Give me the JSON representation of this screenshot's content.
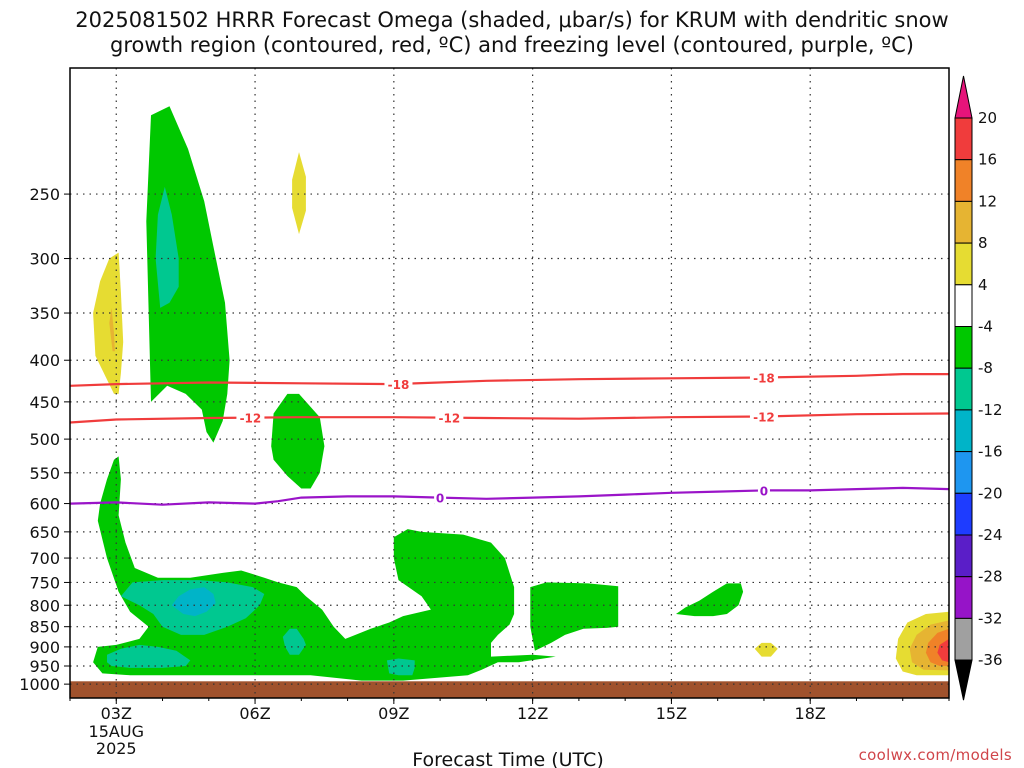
{
  "chart_data": {
    "type": "heatmap",
    "title_line1": "2025081502 HRRR Forecast Omega (shaded, μbar/s) for KRUM with dendritic snow",
    "title_line2": "growth region (contoured, red, ºC) and freezing level (contoured, purple, ºC)",
    "xlabel": "Forecast Time (UTC)",
    "ylabel": "",
    "xlim": [
      2.0,
      21.0
    ],
    "ylim": [
      1040,
      175
    ],
    "x_ticks": [
      {
        "value": 3,
        "label": "03Z"
      },
      {
        "value": 6,
        "label": "06Z"
      },
      {
        "value": 9,
        "label": "09Z"
      },
      {
        "value": 12,
        "label": "12Z"
      },
      {
        "value": 15,
        "label": "15Z"
      },
      {
        "value": 18,
        "label": "18Z"
      }
    ],
    "date_label": [
      "15AUG",
      "2025"
    ],
    "y_ticks": [
      250,
      300,
      350,
      400,
      450,
      500,
      550,
      600,
      650,
      700,
      750,
      800,
      850,
      900,
      950,
      1000
    ],
    "grid": true,
    "omega_regions": [
      {
        "level": -8,
        "color": "#00c800",
        "polygon": [
          [
            3.75,
            450
          ],
          [
            3.65,
            270
          ],
          [
            3.75,
            200
          ],
          [
            4.15,
            195
          ],
          [
            4.55,
            220
          ],
          [
            4.9,
            255
          ],
          [
            5.1,
            290
          ],
          [
            5.35,
            340
          ],
          [
            5.45,
            400
          ],
          [
            5.4,
            440
          ],
          [
            5.3,
            475
          ],
          [
            5.1,
            505
          ],
          [
            4.95,
            490
          ],
          [
            4.85,
            460
          ],
          [
            4.5,
            440
          ],
          [
            4.1,
            430
          ]
        ]
      },
      {
        "level": -12,
        "color": "#00c890",
        "polygon": [
          [
            3.95,
            345
          ],
          [
            3.85,
            300
          ],
          [
            3.9,
            265
          ],
          [
            4.05,
            245
          ],
          [
            4.2,
            265
          ],
          [
            4.35,
            300
          ],
          [
            4.35,
            325
          ],
          [
            4.15,
            340
          ]
        ]
      },
      {
        "level": 4,
        "color": "#e6dc32",
        "polygon": [
          [
            6.95,
            280
          ],
          [
            6.8,
            260
          ],
          [
            6.8,
            240
          ],
          [
            6.95,
            222
          ],
          [
            7.1,
            238
          ],
          [
            7.1,
            262
          ]
        ]
      },
      {
        "level": 4,
        "color": "#e6dc32",
        "polygon": [
          [
            2.95,
            440
          ],
          [
            2.55,
            395
          ],
          [
            2.5,
            350
          ],
          [
            2.65,
            320
          ],
          [
            2.85,
            300
          ],
          [
            3.05,
            295
          ],
          [
            3.1,
            330
          ],
          [
            3.15,
            380
          ],
          [
            3.1,
            415
          ],
          [
            3.05,
            440
          ]
        ]
      },
      {
        "level": 8,
        "color": "#e6b432",
        "polygon": [
          [
            2.92,
            390
          ],
          [
            2.85,
            360
          ],
          [
            2.9,
            345
          ],
          [
            2.95,
            370
          ],
          [
            2.97,
            390
          ]
        ]
      },
      {
        "level": -8,
        "color": "#00c800",
        "polygon": [
          [
            6.35,
            510
          ],
          [
            6.4,
            465
          ],
          [
            6.7,
            440
          ],
          [
            6.95,
            440
          ],
          [
            7.4,
            470
          ],
          [
            7.5,
            510
          ],
          [
            7.4,
            550
          ],
          [
            7.2,
            575
          ],
          [
            7.0,
            575
          ],
          [
            6.7,
            555
          ],
          [
            6.4,
            530
          ]
        ]
      },
      {
        "level": -8,
        "color": "#00c800",
        "polygon": [
          [
            2.5,
            940
          ],
          [
            2.6,
            900
          ],
          [
            3.0,
            895
          ],
          [
            3.5,
            880
          ],
          [
            3.7,
            850
          ],
          [
            3.3,
            815
          ],
          [
            3.05,
            770
          ],
          [
            2.8,
            700
          ],
          [
            2.6,
            630
          ],
          [
            2.65,
            600
          ],
          [
            2.8,
            560
          ],
          [
            2.95,
            530
          ],
          [
            3.05,
            525
          ],
          [
            3.1,
            560
          ],
          [
            3.05,
            620
          ],
          [
            3.2,
            670
          ],
          [
            3.4,
            720
          ],
          [
            3.9,
            740
          ],
          [
            4.6,
            740
          ],
          [
            5.3,
            730
          ],
          [
            5.7,
            725
          ],
          [
            6.2,
            740
          ],
          [
            6.5,
            750
          ],
          [
            6.9,
            760
          ],
          [
            7.1,
            780
          ],
          [
            7.45,
            810
          ],
          [
            7.7,
            850
          ],
          [
            7.95,
            880
          ],
          [
            8.5,
            855
          ],
          [
            8.9,
            840
          ],
          [
            9.2,
            825
          ],
          [
            9.8,
            810
          ],
          [
            9.6,
            780
          ],
          [
            9.1,
            745
          ],
          [
            9.0,
            700
          ],
          [
            9.0,
            660
          ],
          [
            9.3,
            645
          ],
          [
            9.6,
            650
          ],
          [
            10.5,
            655
          ],
          [
            11.1,
            670
          ],
          [
            11.4,
            700
          ],
          [
            11.6,
            760
          ],
          [
            11.6,
            820
          ],
          [
            11.5,
            845
          ],
          [
            11.25,
            870
          ],
          [
            11.1,
            890
          ],
          [
            11.1,
            925
          ],
          [
            12.0,
            920
          ],
          [
            12.5,
            925
          ],
          [
            11.7,
            940
          ],
          [
            11.25,
            940
          ],
          [
            10.9,
            960
          ],
          [
            10.6,
            975
          ],
          [
            9.2,
            990
          ],
          [
            8.3,
            990
          ],
          [
            7.2,
            975
          ],
          [
            6.0,
            975
          ],
          [
            5.0,
            975
          ],
          [
            4.2,
            975
          ],
          [
            3.3,
            975
          ],
          [
            2.7,
            970
          ]
        ]
      },
      {
        "level": -12,
        "color": "#00c890",
        "polygon": [
          [
            2.8,
            940
          ],
          [
            2.8,
            920
          ],
          [
            3.1,
            905
          ],
          [
            3.5,
            895
          ],
          [
            3.9,
            900
          ],
          [
            4.3,
            910
          ],
          [
            4.6,
            935
          ],
          [
            4.5,
            950
          ],
          [
            4.0,
            955
          ],
          [
            3.3,
            955
          ],
          [
            2.9,
            950
          ]
        ]
      },
      {
        "level": -12,
        "color": "#00c890",
        "polygon": [
          [
            3.1,
            780
          ],
          [
            3.35,
            750
          ],
          [
            4.0,
            745
          ],
          [
            4.8,
            745
          ],
          [
            5.4,
            750
          ],
          [
            5.95,
            760
          ],
          [
            6.2,
            775
          ],
          [
            6.1,
            800
          ],
          [
            5.8,
            830
          ],
          [
            5.4,
            850
          ],
          [
            4.9,
            870
          ],
          [
            4.4,
            870
          ],
          [
            4.0,
            850
          ],
          [
            3.8,
            820
          ],
          [
            3.5,
            800
          ]
        ]
      },
      {
        "level": -16,
        "color": "#00b4c8",
        "polygon": [
          [
            4.2,
            800
          ],
          [
            4.35,
            780
          ],
          [
            4.6,
            765
          ],
          [
            4.9,
            760
          ],
          [
            5.1,
            775
          ],
          [
            5.15,
            795
          ],
          [
            4.95,
            815
          ],
          [
            4.7,
            825
          ],
          [
            4.45,
            820
          ]
        ]
      },
      {
        "level": -12,
        "color": "#00c890",
        "polygon": [
          [
            6.6,
            875
          ],
          [
            6.75,
            855
          ],
          [
            6.9,
            855
          ],
          [
            7.05,
            880
          ],
          [
            7.1,
            895
          ],
          [
            6.95,
            920
          ],
          [
            6.75,
            920
          ],
          [
            6.65,
            900
          ]
        ]
      },
      {
        "level": -12,
        "color": "#00c890",
        "polygon": [
          [
            8.9,
            970
          ],
          [
            8.85,
            935
          ],
          [
            9.1,
            930
          ],
          [
            9.45,
            935
          ],
          [
            9.45,
            955
          ],
          [
            9.4,
            975
          ],
          [
            9.1,
            975
          ]
        ]
      },
      {
        "level": -8,
        "color": "#00c800",
        "polygon": [
          [
            11.95,
            760
          ],
          [
            12.3,
            750
          ],
          [
            13.2,
            752
          ],
          [
            13.85,
            758
          ],
          [
            13.85,
            850
          ],
          [
            13.6,
            853
          ],
          [
            13.1,
            855
          ],
          [
            12.7,
            870
          ],
          [
            12.4,
            890
          ],
          [
            12.05,
            910
          ],
          [
            11.95,
            850
          ]
        ]
      },
      {
        "level": -8,
        "color": "#00c800",
        "polygon": [
          [
            15.1,
            820
          ],
          [
            15.3,
            805
          ],
          [
            15.6,
            790
          ],
          [
            15.9,
            770
          ],
          [
            16.2,
            752
          ],
          [
            16.5,
            752
          ],
          [
            16.55,
            770
          ],
          [
            16.45,
            800
          ],
          [
            16.2,
            820
          ],
          [
            15.9,
            825
          ],
          [
            15.5,
            825
          ]
        ]
      },
      {
        "level": 4,
        "color": "#e6dc32",
        "polygon": [
          [
            16.8,
            905
          ],
          [
            16.95,
            890
          ],
          [
            17.15,
            890
          ],
          [
            17.3,
            905
          ],
          [
            17.15,
            925
          ],
          [
            16.95,
            925
          ]
        ]
      },
      {
        "level": 4,
        "color": "#e6dc32",
        "polygon": [
          [
            21.0,
            815
          ],
          [
            20.5,
            820
          ],
          [
            20.1,
            840
          ],
          [
            19.9,
            880
          ],
          [
            19.85,
            930
          ],
          [
            20.0,
            965
          ],
          [
            20.3,
            975
          ],
          [
            21.0,
            975
          ]
        ]
      },
      {
        "level": 8,
        "color": "#e6b432",
        "polygon": [
          [
            21.0,
            835
          ],
          [
            20.6,
            845
          ],
          [
            20.3,
            870
          ],
          [
            20.15,
            905
          ],
          [
            20.2,
            940
          ],
          [
            20.45,
            960
          ],
          [
            21.0,
            962
          ]
        ]
      },
      {
        "level": 12,
        "color": "#f08228",
        "polygon": [
          [
            21.0,
            855
          ],
          [
            20.75,
            865
          ],
          [
            20.55,
            890
          ],
          [
            20.5,
            915
          ],
          [
            20.6,
            940
          ],
          [
            20.8,
            950
          ],
          [
            21.0,
            950
          ]
        ]
      },
      {
        "level": 16,
        "color": "#f03c3c",
        "polygon": [
          [
            21.0,
            880
          ],
          [
            20.8,
            895
          ],
          [
            20.75,
            915
          ],
          [
            20.85,
            935
          ],
          [
            21.0,
            940
          ]
        ]
      }
    ],
    "contours": [
      {
        "name": "-18",
        "color": "#f03c3c",
        "label": "-18",
        "label_x": [
          9.1,
          17.0
        ],
        "points": [
          [
            2.0,
            430
          ],
          [
            3.0,
            428
          ],
          [
            5.0,
            426
          ],
          [
            7.0,
            427
          ],
          [
            9.0,
            428
          ],
          [
            11.0,
            424
          ],
          [
            13.0,
            422
          ],
          [
            15.0,
            421
          ],
          [
            17.0,
            420
          ],
          [
            19.0,
            418
          ],
          [
            20.0,
            416
          ],
          [
            21.0,
            416
          ]
        ]
      },
      {
        "name": "-12",
        "color": "#f03c3c",
        "label": "-12",
        "label_x": [
          5.9,
          10.2,
          17.0
        ],
        "points": [
          [
            2.0,
            477
          ],
          [
            3.0,
            473
          ],
          [
            5.0,
            471
          ],
          [
            7.0,
            470
          ],
          [
            9.0,
            470
          ],
          [
            11.0,
            471
          ],
          [
            13.0,
            472
          ],
          [
            15.0,
            470
          ],
          [
            17.0,
            469
          ],
          [
            19.0,
            466
          ],
          [
            21.0,
            465
          ]
        ]
      },
      {
        "name": "0",
        "color": "#9a14c8",
        "label": "0",
        "label_x": [
          10.0,
          17.0
        ],
        "points": [
          [
            2.0,
            600
          ],
          [
            3.0,
            598
          ],
          [
            4.0,
            602
          ],
          [
            5.0,
            598
          ],
          [
            6.0,
            600
          ],
          [
            6.5,
            596
          ],
          [
            7.0,
            590
          ],
          [
            8.0,
            588
          ],
          [
            9.0,
            588
          ],
          [
            10.0,
            590
          ],
          [
            11.0,
            592
          ],
          [
            12.0,
            590
          ],
          [
            13.0,
            588
          ],
          [
            14.0,
            585
          ],
          [
            15.0,
            582
          ],
          [
            16.0,
            580
          ],
          [
            17.0,
            578
          ],
          [
            18.0,
            578
          ],
          [
            19.0,
            576
          ],
          [
            20.0,
            574
          ],
          [
            21.0,
            576
          ]
        ]
      }
    ],
    "colorbar": {
      "labels": [
        "20",
        "16",
        "12",
        "8",
        "4",
        "-4",
        "-8",
        "-12",
        "-16",
        "-20",
        "-24",
        "-28",
        "-32",
        "-36"
      ],
      "colors": [
        "#f03c3c",
        "#f08228",
        "#e6b432",
        "#e6dc32",
        "#ffffff",
        "#00c800",
        "#00c890",
        "#00b4c8",
        "#1e96f0",
        "#1e3cff",
        "#5a1ec8",
        "#9614c8",
        "#a0a0a0"
      ],
      "top_arrow_color": "#e6147a",
      "bottom_arrow_color": "#000000"
    },
    "ground_color": "#a0522d",
    "ground_top": 992
  },
  "footer": {
    "credit": "coolwx.com/models"
  }
}
